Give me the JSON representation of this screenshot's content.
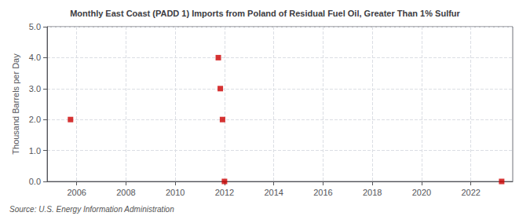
{
  "chart_data": {
    "type": "scatter",
    "title": "Monthly East Coast (PADD 1) Imports from Poland of Residual Fuel Oil, Greater Than 1% Sulfur",
    "ylabel": "Thousand Barrels per Day",
    "annotations": [
      "Source: U.S. Energy Information Administration"
    ],
    "x": [
      2005.75,
      2011.75,
      2011.83,
      2011.92,
      2012.0,
      2023.25
    ],
    "values": [
      2.0,
      4.0,
      3.0,
      2.0,
      0.0,
      0.0
    ],
    "color": "#cc0000",
    "marker": "square",
    "xlim": [
      2004.8,
      2023.7
    ],
    "xticks": [
      2006,
      2008,
      2010,
      2012,
      2014,
      2016,
      2018,
      2020,
      2022
    ],
    "ylim": [
      0.0,
      5.0
    ],
    "yticks": [
      {
        "value": 0.0,
        "label": "0.0"
      },
      {
        "value": 1.0,
        "label": "1.0"
      },
      {
        "value": 2.0,
        "label": "2.0"
      },
      {
        "value": 3.0,
        "label": "3.0"
      },
      {
        "value": 4.0,
        "label": "4.0"
      },
      {
        "value": 5.0,
        "label": "5.0"
      }
    ],
    "grid": true
  }
}
